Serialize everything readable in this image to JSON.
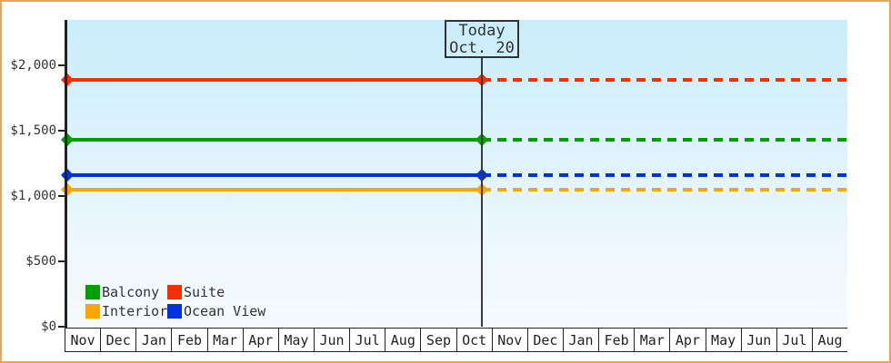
{
  "chart_data": {
    "type": "line",
    "title": "",
    "xlabel": "",
    "ylabel": "",
    "ylim": [
      0,
      2000
    ],
    "grid": false,
    "x_categories": [
      "Nov",
      "Dec",
      "Jan",
      "Feb",
      "Mar",
      "Apr",
      "May",
      "Jun",
      "Jul",
      "Aug",
      "Sep",
      "Oct",
      "Nov",
      "Dec",
      "Jan",
      "Feb",
      "Mar",
      "Apr",
      "May",
      "Jun",
      "Jul",
      "Aug"
    ],
    "y_ticks": [
      {
        "value": 0,
        "label": "$0"
      },
      {
        "value": 500,
        "label": "$500"
      },
      {
        "value": 1000,
        "label": "$1,000"
      },
      {
        "value": 1500,
        "label": "$1,500"
      },
      {
        "value": 2000,
        "label": "$2,000"
      }
    ],
    "series": [
      {
        "name": "Suite",
        "value": 1890,
        "color": "#f23000",
        "style": "flat line: solid before today, dotted after, diamond markers at axis and today"
      },
      {
        "name": "Balcony",
        "value": 1430,
        "color": "#00a000",
        "style": "flat line: solid before today, dotted after, diamond markers at axis and today"
      },
      {
        "name": "Ocean View",
        "value": 1160,
        "color": "#0033e0",
        "style": "flat line: solid before today, dotted after, diamond markers at axis and today"
      },
      {
        "name": "Interior",
        "value": 1050,
        "color": "#ffa500",
        "style": "flat line: solid before today, dotted after, diamond markers at axis and today"
      }
    ],
    "today": {
      "label": [
        "Today",
        "Oct. 20"
      ],
      "month_index": 11,
      "day": 20
    },
    "legend": {
      "position": "bottom-left inside plot",
      "items": [
        {
          "label": "Balcony",
          "color": "#00a000"
        },
        {
          "label": "Suite",
          "color": "#f23000"
        },
        {
          "label": "Interior",
          "color": "#ffa500"
        },
        {
          "label": "Ocean View",
          "color": "#0033e0"
        }
      ]
    },
    "style_colors": {
      "plot_bg_top": "#c9edfb",
      "plot_bg_bottom": "#f5fafe",
      "frame_border": "#e9a45c",
      "axis": "#222222",
      "text": "#333333"
    }
  }
}
